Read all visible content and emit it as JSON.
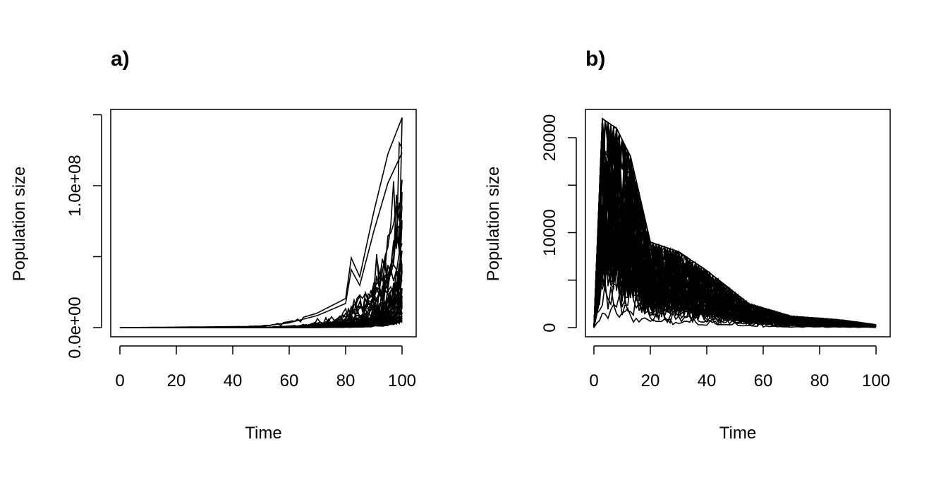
{
  "chart_data": [
    {
      "type": "line",
      "title": "a)",
      "xlabel": "Time",
      "ylabel": "Population size",
      "xlim": [
        0,
        100
      ],
      "ylim": [
        0,
        150000000
      ],
      "xticks": [
        0,
        20,
        40,
        60,
        80,
        100
      ],
      "xtick_labels": [
        "0",
        "20",
        "40",
        "60",
        "80",
        "100"
      ],
      "yticks": [
        0,
        50000000,
        100000000,
        150000000
      ],
      "ytick_labels": [
        "0.0e+00",
        "",
        "1.0e+08",
        ""
      ],
      "grid": false,
      "legend": "none",
      "n_series": 60,
      "envelope_max": {
        "x": [
          0,
          50,
          60,
          70,
          80,
          82,
          85,
          90,
          95,
          100
        ],
        "y": [
          0,
          1000000,
          4000000,
          10000000,
          20000000,
          48000000,
          35000000,
          80000000,
          120000000,
          145000000
        ]
      },
      "seed": 7
    },
    {
      "type": "line",
      "title": "b)",
      "xlabel": "Time",
      "ylabel": "Population size",
      "xlim": [
        0,
        100
      ],
      "ylim": [
        0,
        22000
      ],
      "xticks": [
        0,
        20,
        40,
        60,
        80,
        100
      ],
      "xtick_labels": [
        "0",
        "20",
        "40",
        "60",
        "80",
        "100"
      ],
      "yticks": [
        0,
        5000,
        10000,
        15000,
        20000
      ],
      "ytick_labels": [
        "0",
        "",
        "10000",
        "",
        "20000"
      ],
      "grid": false,
      "legend": "none",
      "n_series": 60,
      "envelope_max": {
        "x": [
          0,
          3,
          8,
          13,
          20,
          30,
          40,
          55,
          70,
          88,
          100
        ],
        "y": [
          0,
          22000,
          21000,
          18000,
          9000,
          8000,
          6000,
          2500,
          1200,
          800,
          300
        ]
      },
      "seed": 11
    }
  ]
}
